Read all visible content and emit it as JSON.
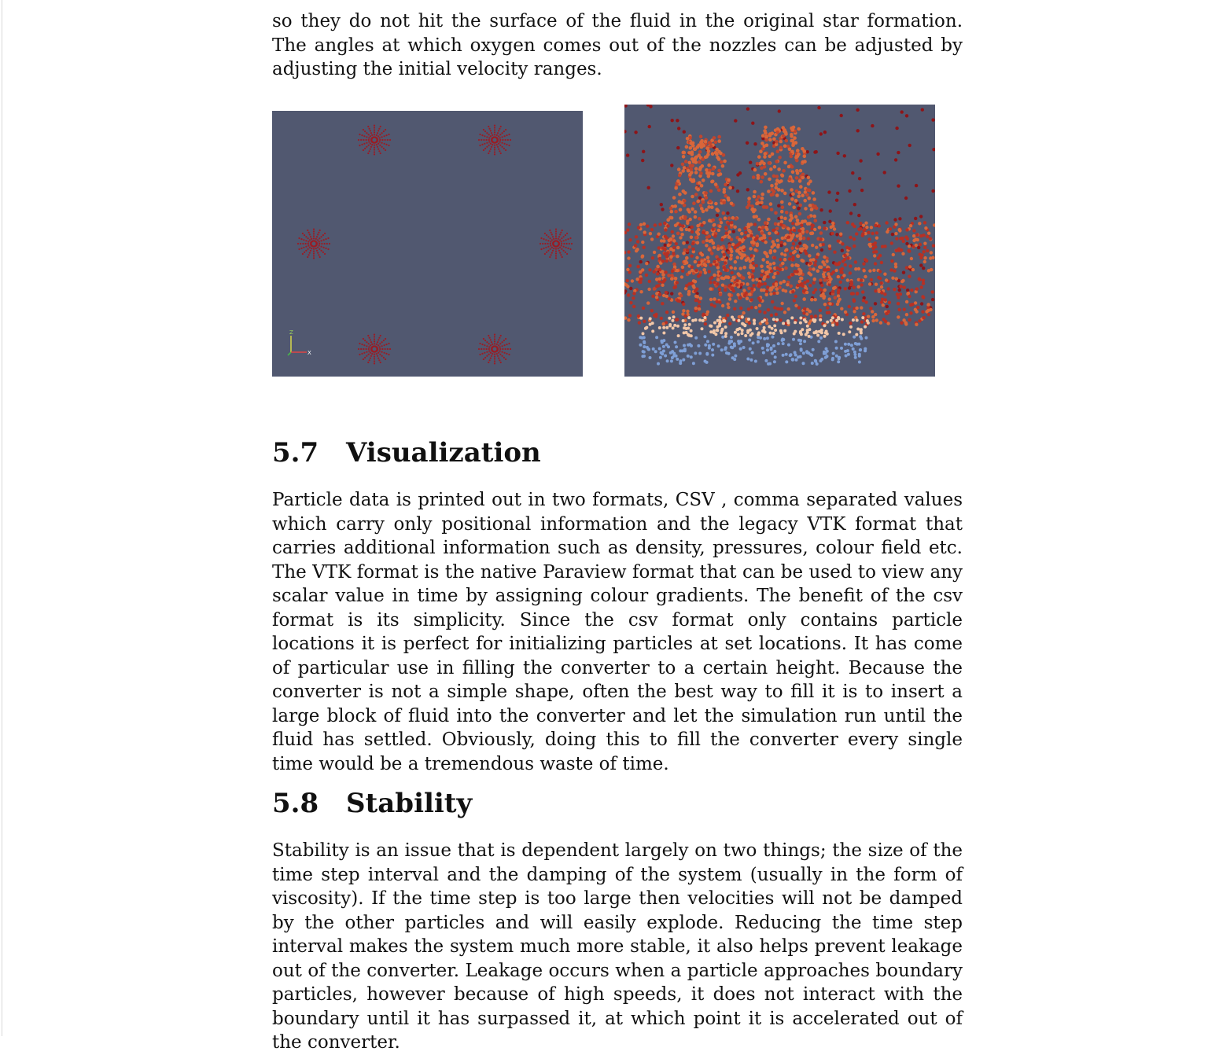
{
  "intro": {
    "text": "so they do not hit the surface of the fluid in the original star formation.  The angles at which oxygen comes out of the nozzles can be adjusted by adjusting the initial velocity ranges."
  },
  "figures": {
    "left": {
      "description_icon": "nozzle-star-pattern",
      "axis_labels": {
        "z": "Z",
        "x": "X"
      }
    },
    "right": {
      "description_icon": "particle-splash"
    }
  },
  "sections": [
    {
      "number": "5.7",
      "title": "Visualization",
      "body": "Particle data is printed out in two formats, CSV , comma separated values which carry only positional information and the legacy VTK format that carries additional information such as density, pressures, colour field etc.  The VTK format is the native Paraview format that can be used to view any scalar value in time by assigning colour gradients.  The benefit of the csv format is its simplicity. Since the csv format only contains particle locations it is perfect for initializing particles at set locations. It has come of particular use in filling the converter to a certain height. Because the converter is not a simple shape, often the best way to fill it is to insert a large block of fluid into the converter and let the simulation run until the fluid has settled. Obviously, doing this to fill the converter every single time would be a tremendous waste of time."
    },
    {
      "number": "5.8",
      "title": "Stability",
      "body": "Stability is an issue that is dependent largely on two things; the size of the time step interval and the damping of the system (usually in the form of viscosity). If the time step is too large then velocities will not be damped by the other particles and will easily explode. Reducing the time step interval makes the system much more stable, it also helps prevent leakage out of the converter. Leakage occurs when a particle approaches boundary particles, however because of high speeds, it does not interact with the boundary until it has surpassed it, at which point it is accelerated out of the converter."
    }
  ],
  "colors": {
    "panel_bg": "#515870",
    "nozzle_particle": "#9b1c24",
    "hot_particle": "#d9663a",
    "dark_particle": "#8e1418",
    "cool_particle": "#7f9fd6",
    "pale_particle": "#f2c7a8"
  }
}
